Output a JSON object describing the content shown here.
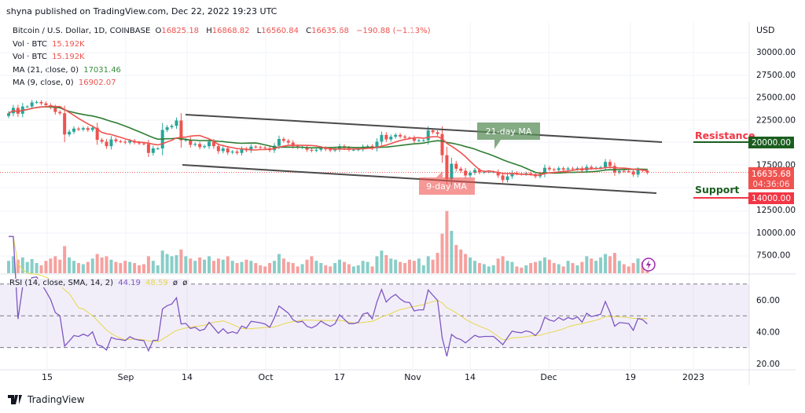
{
  "header": {
    "published": "shyna published on TradingView.com, Dec 22, 2022 19:23 UTC"
  },
  "legend": {
    "symbol": "Bitcoin / U.S. Dollar, 1D, COINBASE",
    "o_label": "O",
    "o": "16825.18",
    "h_label": "H",
    "h": "16868.82",
    "l_label": "L",
    "l": "16560.84",
    "c_label": "C",
    "c": "16635.68",
    "change": "−190.88 (−1.13%)",
    "vol1_label": "Vol · BTC",
    "vol1": "15.192K",
    "vol2_label": "Vol · BTC",
    "vol2": "15.192K",
    "ma21_label": "MA (21, close, 0)",
    "ma21": "17031.46",
    "ma9_label": "MA (9, close, 0)",
    "ma9": "16902.07",
    "rsi_label": "RSI (14, close, SMA, 14, 2)",
    "rsi": "44.19",
    "rsi_sma": "48.59",
    "rsi_x1": "ø",
    "rsi_x2": "ø"
  },
  "price_axis": {
    "currency": "USD",
    "ticks": [
      "30000.00",
      "27500.00",
      "25000.00",
      "22500.00",
      "17500.00",
      "12500.00",
      "10000.00",
      "7500.00"
    ],
    "last_price": "16635.68",
    "countdown": "04:36:06"
  },
  "rsi_axis": {
    "ticks": [
      "60.00",
      "40.00",
      "20.00"
    ]
  },
  "time_axis": [
    "15",
    "Sep",
    "14",
    "Oct",
    "17",
    "Nov",
    "14",
    "Dec",
    "19",
    "2023"
  ],
  "annotations": {
    "resistance": "Resistance",
    "resistance_price": "20000.00",
    "support": "Support",
    "support_price": "14000.00",
    "ma21_callout": "21-day MA",
    "ma9_callout": "9-day MA"
  },
  "colors": {
    "up": "#26a69a",
    "down": "#ef5350",
    "ma21": "#2e7d32",
    "ma9": "#ef5350",
    "rsi": "#7e57c2",
    "rsi_sma": "#e6d84a",
    "resistance": "#1b5e20",
    "support": "#f23645"
  },
  "footer": {
    "brand": "TradingView"
  },
  "chart_data": {
    "type": "candlestick",
    "start_date": "2022-08-07",
    "closes": [
      23200,
      23800,
      23150,
      23950,
      23950,
      24400,
      24450,
      24300,
      24100,
      23850,
      23350,
      23200,
      20850,
      21150,
      21500,
      21400,
      21550,
      21350,
      21600,
      20250,
      20050,
      19550,
      20300,
      20100,
      20050,
      19950,
      20150,
      19950,
      19850,
      19800,
      18800,
      19300,
      19300,
      21350,
      21650,
      21800,
      22400,
      20200,
      20250,
      19700,
      19800,
      19450,
      19550,
      20050,
      19550,
      19000,
      19300,
      18850,
      18950,
      18800,
      19250,
      19080,
      19500,
      19450,
      19400,
      19320,
      19100,
      19600,
      20350,
      20150,
      19950,
      19550,
      19400,
      19450,
      19150,
      19050,
      19150,
      19350,
      19200,
      19080,
      19180,
      19550,
      19350,
      19150,
      19150,
      19200,
      19500,
      19550,
      19330,
      20050,
      20800,
      20300,
      20600,
      20800,
      20620,
      20500,
      20480,
      20150,
      20200,
      20200,
      21300,
      21100,
      20900,
      18550,
      15900,
      17600,
      17050,
      16830,
      16300,
      16600,
      16900,
      16650,
      16700,
      16700,
      16700,
      16300,
      15800,
      16200,
      16600,
      16500,
      16450,
      16550,
      16450,
      16200,
      16450,
      17150,
      16980,
      16900,
      17100,
      16950,
      17080,
      17000,
      17100,
      16850,
      17250,
      17100,
      17150,
      17200,
      17800,
      17350,
      16630,
      16800,
      16780,
      16750,
      16400,
      16900,
      16840,
      16635
    ],
    "volumes_k": [
      22,
      30,
      24,
      28,
      20,
      25,
      18,
      14,
      22,
      26,
      30,
      24,
      48,
      28,
      22,
      18,
      16,
      20,
      26,
      34,
      28,
      30,
      24,
      20,
      18,
      22,
      20,
      18,
      14,
      16,
      30,
      22,
      14,
      40,
      34,
      30,
      32,
      42,
      30,
      26,
      22,
      28,
      24,
      30,
      22,
      26,
      24,
      30,
      22,
      18,
      20,
      24,
      22,
      18,
      14,
      12,
      18,
      22,
      34,
      26,
      20,
      18,
      12,
      16,
      24,
      30,
      22,
      18,
      14,
      12,
      18,
      24,
      20,
      16,
      12,
      14,
      22,
      20,
      12,
      30,
      40,
      32,
      26,
      24,
      20,
      18,
      24,
      22,
      26,
      14,
      30,
      24,
      36,
      70,
      110,
      75,
      50,
      42,
      34,
      28,
      22,
      18,
      16,
      12,
      14,
      26,
      30,
      22,
      20,
      12,
      10,
      14,
      18,
      20,
      22,
      28,
      24,
      18,
      16,
      12,
      22,
      18,
      14,
      20,
      30,
      26,
      22,
      28,
      34,
      30,
      36,
      22,
      16,
      12,
      18,
      26,
      20,
      14
    ]
  }
}
